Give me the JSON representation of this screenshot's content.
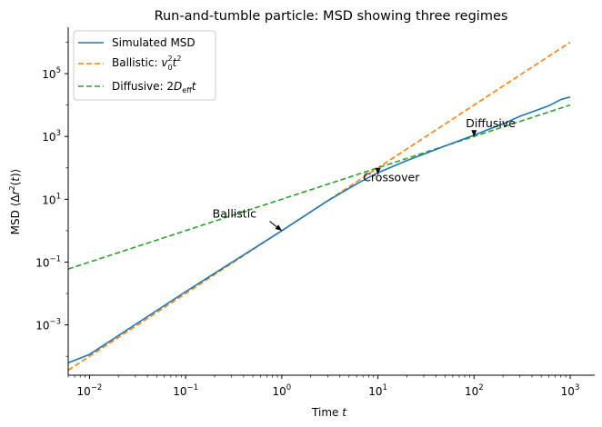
{
  "chart_data": {
    "type": "line",
    "title": "Run-and-tumble particle: MSD showing three regimes",
    "xlabel": "Time t",
    "ylabel": "MSD ⟨Δr²(t)⟩",
    "xscale": "log",
    "yscale": "log",
    "xlim": [
      0.006,
      1800
    ],
    "ylim": [
      2.5e-05,
      3000000
    ],
    "xticks": [
      {
        "value": 0.01,
        "base": "10",
        "exp": "−2"
      },
      {
        "value": 0.1,
        "base": "10",
        "exp": "−1"
      },
      {
        "value": 1,
        "base": "10",
        "exp": "0"
      },
      {
        "value": 10,
        "base": "10",
        "exp": "1"
      },
      {
        "value": 100,
        "base": "10",
        "exp": "2"
      },
      {
        "value": 1000,
        "base": "10",
        "exp": "3"
      }
    ],
    "yticks": [
      {
        "value": 0.001,
        "base": "10",
        "exp": "−3"
      },
      {
        "value": 0.1,
        "base": "10",
        "exp": "−1"
      },
      {
        "value": 10,
        "base": "10",
        "exp": "1"
      },
      {
        "value": 1000,
        "base": "10",
        "exp": "3"
      },
      {
        "value": 100000,
        "base": "10",
        "exp": "5"
      }
    ],
    "grid": false,
    "legend_position": "top-left",
    "series": [
      {
        "name": "Simulated MSD",
        "color": "#1f77b4",
        "style": "solid",
        "points": [
          [
            0.006,
            6.2e-05
          ],
          [
            0.01,
            0.000115
          ],
          [
            0.1,
            0.0115
          ],
          [
            1,
            1.0
          ],
          [
            3,
            8.9
          ],
          [
            6,
            31
          ],
          [
            10,
            70
          ],
          [
            20,
            170
          ],
          [
            50,
            500
          ],
          [
            100,
            1100
          ],
          [
            150,
            1800
          ],
          [
            200,
            2500
          ],
          [
            300,
            4400
          ],
          [
            400,
            6000
          ],
          [
            600,
            9500
          ],
          [
            800,
            15000
          ],
          [
            1000,
            18000
          ]
        ]
      },
      {
        "name": "Ballistic: v₀²t²",
        "color": "#ff7f0e",
        "style": "dashed",
        "points": [
          [
            0.006,
            3.6e-05
          ],
          [
            1000,
            1000000
          ]
        ]
      },
      {
        "name": "Diffusive: 2D_eff t",
        "color": "#2ca02c",
        "style": "dashed",
        "points": [
          [
            0.006,
            0.06
          ],
          [
            1000,
            10000
          ]
        ]
      }
    ],
    "annotations": [
      {
        "text": "Ballistic",
        "text_at": [
          0.19,
          2.6
        ],
        "arrow_to": [
          1.0,
          1.0
        ]
      },
      {
        "text": "Crossover",
        "text_at": [
          7.0,
          38
        ],
        "arrow_to": [
          10,
          62
        ]
      },
      {
        "text": "Diffusive",
        "text_at": [
          82,
          2000
        ],
        "arrow_to": [
          100,
          1000
        ]
      }
    ]
  }
}
